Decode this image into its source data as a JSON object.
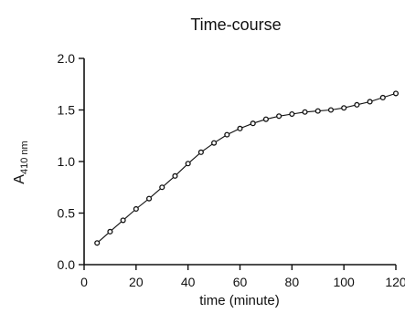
{
  "chart_data": {
    "type": "scatter",
    "title": "Time-course",
    "xlabel": "time (minute)",
    "ylabel_main": "A",
    "ylabel_sub": "410 nm",
    "xlim": [
      0,
      120
    ],
    "ylim": [
      0,
      2
    ],
    "xticks": [
      0,
      20,
      40,
      60,
      80,
      100,
      120
    ],
    "yticks": [
      "0.0",
      "0.5",
      "1.0",
      "1.5",
      "2.0"
    ],
    "grid": false,
    "legend": "none",
    "series": [
      {
        "marker": "open-circle",
        "fit_line": true,
        "x": [
          5,
          10,
          15,
          20,
          25,
          30,
          35,
          40,
          45,
          50,
          55,
          60,
          65,
          70,
          75,
          80,
          85,
          90,
          95,
          100,
          105,
          110,
          115,
          120
        ],
        "y": [
          0.21,
          0.32,
          0.43,
          0.54,
          0.64,
          0.75,
          0.86,
          0.98,
          1.09,
          1.18,
          1.26,
          1.32,
          1.37,
          1.41,
          1.44,
          1.46,
          1.48,
          1.49,
          1.5,
          1.52,
          1.55,
          1.58,
          1.62,
          1.66
        ]
      }
    ]
  }
}
